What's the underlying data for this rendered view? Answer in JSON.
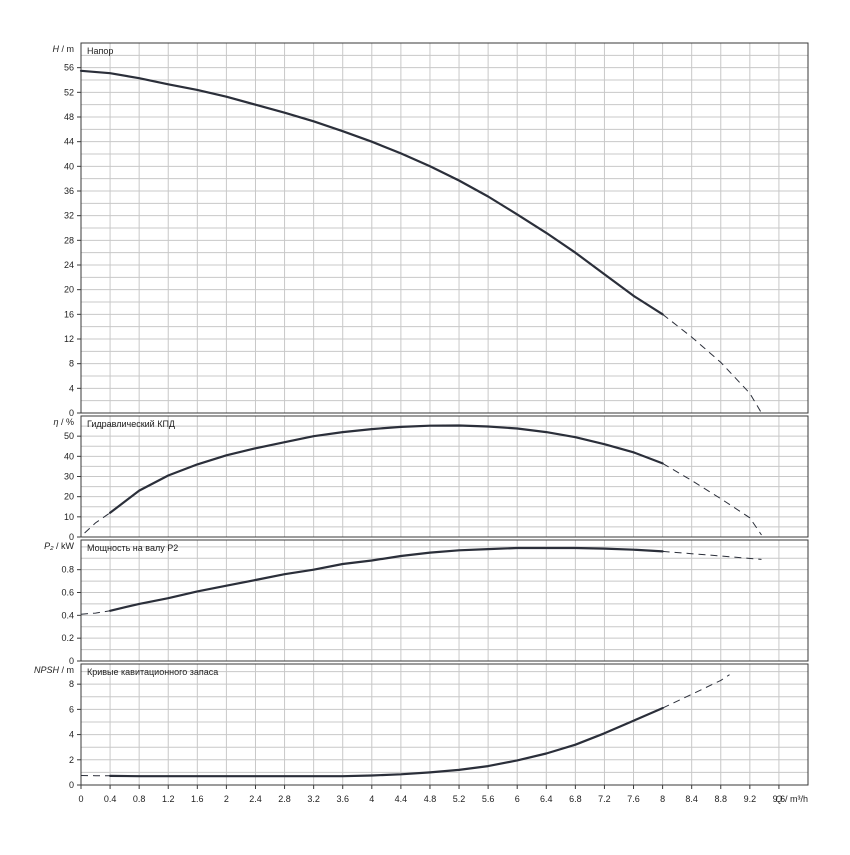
{
  "colors": {
    "curve": "#2b2f3a",
    "grid": "#c8c8c8",
    "frame": "#3a3a3a",
    "background": "#ffffff"
  },
  "chart_data": [
    {
      "id": "head",
      "type": "line",
      "title": "Напор",
      "ylabel_symbol": "H",
      "ylabel_unit": " / m",
      "ylim": [
        0,
        60
      ],
      "yticks": [
        0,
        4,
        8,
        12,
        16,
        20,
        24,
        28,
        32,
        36,
        40,
        44,
        48,
        52,
        56
      ],
      "solid": {
        "x": [
          0,
          0.4,
          0.8,
          1.2,
          1.6,
          2.0,
          2.4,
          2.8,
          3.2,
          3.6,
          4.0,
          4.4,
          4.8,
          5.2,
          5.6,
          6.0,
          6.4,
          6.8,
          7.2,
          7.6,
          8.0
        ],
        "y": [
          55.5,
          55.1,
          54.3,
          53.3,
          52.4,
          51.3,
          50.0,
          48.7,
          47.3,
          45.7,
          44.0,
          42.1,
          40.0,
          37.7,
          35.1,
          32.2,
          29.2,
          26.0,
          22.5,
          19.0,
          16.0
        ]
      },
      "dashed": {
        "x": [
          8.0,
          8.4,
          8.8,
          9.2,
          9.36
        ],
        "y": [
          16.0,
          12.3,
          8.2,
          3.2,
          0
        ]
      }
    },
    {
      "id": "efficiency",
      "type": "line",
      "title": "Гидравлический КПД",
      "ylabel_symbol": "η",
      "ylabel_unit": " / %",
      "ylim": [
        0,
        60
      ],
      "yticks": [
        0,
        10,
        20,
        30,
        40,
        50
      ],
      "dashed_start": {
        "x": [
          0.05,
          0.2,
          0.4
        ],
        "y": [
          2,
          7,
          12
        ]
      },
      "solid": {
        "x": [
          0.4,
          0.8,
          1.2,
          1.6,
          2.0,
          2.4,
          2.8,
          3.2,
          3.6,
          4.0,
          4.4,
          4.8,
          5.2,
          5.6,
          6.0,
          6.4,
          6.8,
          7.2,
          7.6,
          8.0
        ],
        "y": [
          12,
          23,
          30.5,
          36,
          40.5,
          44,
          47,
          50,
          52,
          53.5,
          54.6,
          55.2,
          55.3,
          54.8,
          53.8,
          52,
          49.5,
          46,
          42,
          36.5
        ]
      },
      "dashed": {
        "x": [
          8.0,
          8.4,
          8.8,
          9.2,
          9.36
        ],
        "y": [
          36.5,
          28,
          19,
          9.5,
          1
        ]
      }
    },
    {
      "id": "power",
      "type": "line",
      "title": "Мощность на валу P2",
      "ylabel_symbol": "P₂",
      "ylabel_unit": " / kW",
      "ylim": [
        0,
        1.06
      ],
      "yticks": [
        0,
        0.2,
        0.4,
        0.6,
        0.8
      ],
      "dashed_start": {
        "x": [
          0,
          0.2,
          0.4
        ],
        "y": [
          0.41,
          0.42,
          0.44
        ]
      },
      "solid": {
        "x": [
          0.4,
          0.8,
          1.2,
          1.6,
          2.0,
          2.4,
          2.8,
          3.2,
          3.6,
          4.0,
          4.4,
          4.8,
          5.2,
          5.6,
          6.0,
          6.4,
          6.8,
          7.2,
          7.6,
          8.0
        ],
        "y": [
          0.44,
          0.5,
          0.55,
          0.61,
          0.66,
          0.71,
          0.76,
          0.8,
          0.85,
          0.88,
          0.92,
          0.95,
          0.97,
          0.98,
          0.99,
          0.99,
          0.99,
          0.985,
          0.975,
          0.96
        ]
      },
      "dashed": {
        "x": [
          8.0,
          8.4,
          8.8,
          9.36
        ],
        "y": [
          0.96,
          0.94,
          0.92,
          0.89
        ]
      }
    },
    {
      "id": "npsh",
      "type": "line",
      "title": "Кривые кавитационного запаса",
      "ylabel_symbol": "NPSH",
      "ylabel_unit": " / m",
      "ylim": [
        0,
        9.6
      ],
      "yticks": [
        0,
        2,
        4,
        6,
        8
      ],
      "dashed_start": {
        "x": [
          0,
          0.2,
          0.4
        ],
        "y": [
          0.75,
          0.74,
          0.73
        ]
      },
      "solid": {
        "x": [
          0.4,
          0.8,
          1.2,
          1.6,
          2.0,
          2.4,
          2.8,
          3.2,
          3.6,
          4.0,
          4.4,
          4.8,
          5.2,
          5.6,
          6.0,
          6.4,
          6.8,
          7.2,
          7.6,
          8.0
        ],
        "y": [
          0.72,
          0.7,
          0.7,
          0.7,
          0.7,
          0.7,
          0.7,
          0.7,
          0.7,
          0.75,
          0.85,
          1.0,
          1.2,
          1.5,
          1.95,
          2.5,
          3.2,
          4.1,
          5.1,
          6.1
        ]
      },
      "dashed": {
        "x": [
          8.0,
          8.4,
          8.8,
          8.92
        ],
        "y": [
          6.1,
          7.2,
          8.3,
          8.75
        ]
      }
    }
  ],
  "x_axis": {
    "symbol": "Q",
    "unit": " / m³/h",
    "xlim": [
      0,
      10.0
    ],
    "ticks": [
      0,
      0.4,
      0.8,
      1.2,
      1.6,
      2,
      2.4,
      2.8,
      3.2,
      3.6,
      4,
      4.4,
      4.8,
      5.2,
      5.6,
      6,
      6.4,
      6.8,
      7.2,
      7.6,
      8,
      8.4,
      8.8,
      9.2,
      9.6
    ],
    "tick_labels": [
      "0",
      "0.4",
      "0.8",
      "1.2",
      "1.6",
      "2",
      "2.4",
      "2.8",
      "3.2",
      "3.6",
      "4",
      "4.4",
      "4.8",
      "5.2",
      "5.6",
      "6",
      "6.4",
      "6.8",
      "7.2",
      "7.6",
      "8",
      "8.4",
      "8.8",
      "9.2",
      "9.6"
    ]
  }
}
